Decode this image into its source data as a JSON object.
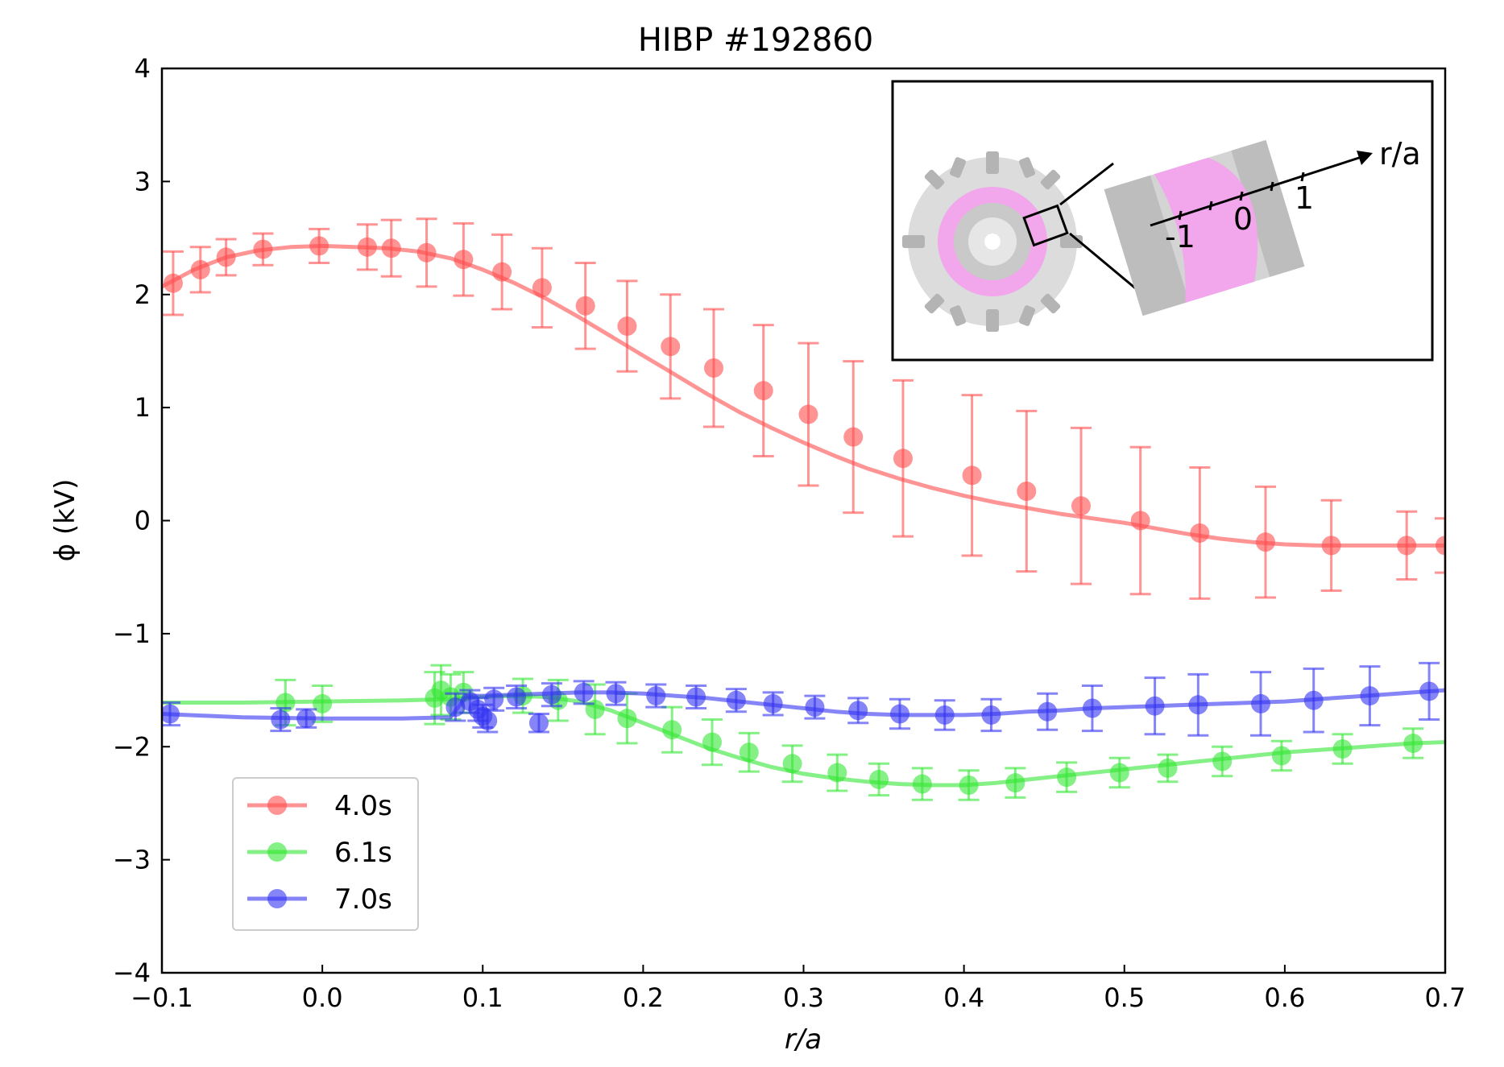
{
  "chart_data": {
    "type": "line",
    "title": "HIBP #192860",
    "xlabel": "r/a",
    "ylabel": "ϕ (kV)",
    "xlim": [
      -0.1,
      0.7
    ],
    "ylim": [
      -4,
      4
    ],
    "xticks": [
      -0.1,
      0.0,
      0.1,
      0.2,
      0.3,
      0.4,
      0.5,
      0.6,
      0.7
    ],
    "xtick_labels": [
      "−0.1",
      "0.0",
      "0.1",
      "0.2",
      "0.3",
      "0.4",
      "0.5",
      "0.6",
      "0.7"
    ],
    "yticks": [
      -4,
      -3,
      -2,
      -1,
      0,
      1,
      2,
      3,
      4
    ],
    "ytick_labels": [
      "−4",
      "−3",
      "−2",
      "−1",
      "0",
      "1",
      "2",
      "3",
      "4"
    ],
    "legend_position": "bottom-left",
    "series": [
      {
        "name": "4.0s",
        "color": "#ff4d4d",
        "curve_x": [
          -0.1,
          -0.08,
          -0.06,
          -0.04,
          -0.02,
          0.0,
          0.02,
          0.04,
          0.06,
          0.08,
          0.1,
          0.12,
          0.14,
          0.16,
          0.18,
          0.2,
          0.22,
          0.24,
          0.26,
          0.28,
          0.3,
          0.32,
          0.34,
          0.36,
          0.38,
          0.4,
          0.42,
          0.44,
          0.46,
          0.48,
          0.5,
          0.52,
          0.54,
          0.56,
          0.58,
          0.6,
          0.62,
          0.64,
          0.66,
          0.68,
          0.7
        ],
        "curve_y": [
          2.07,
          2.22,
          2.33,
          2.39,
          2.42,
          2.43,
          2.42,
          2.41,
          2.38,
          2.32,
          2.22,
          2.1,
          1.96,
          1.8,
          1.63,
          1.46,
          1.29,
          1.12,
          0.96,
          0.82,
          0.69,
          0.57,
          0.46,
          0.37,
          0.29,
          0.22,
          0.16,
          0.11,
          0.06,
          0.02,
          -0.02,
          -0.07,
          -0.12,
          -0.16,
          -0.19,
          -0.21,
          -0.22,
          -0.22,
          -0.22,
          -0.22,
          -0.22
        ],
        "points": [
          {
            "x": -0.093,
            "y": 2.1,
            "err": 0.28
          },
          {
            "x": -0.076,
            "y": 2.22,
            "err": 0.2
          },
          {
            "x": -0.06,
            "y": 2.33,
            "err": 0.16
          },
          {
            "x": -0.037,
            "y": 2.4,
            "err": 0.14
          },
          {
            "x": -0.002,
            "y": 2.43,
            "err": 0.15
          },
          {
            "x": 0.028,
            "y": 2.42,
            "err": 0.2
          },
          {
            "x": 0.043,
            "y": 2.41,
            "err": 0.25
          },
          {
            "x": 0.065,
            "y": 2.37,
            "err": 0.3
          },
          {
            "x": 0.088,
            "y": 2.31,
            "err": 0.32
          },
          {
            "x": 0.112,
            "y": 2.2,
            "err": 0.33
          },
          {
            "x": 0.137,
            "y": 2.06,
            "err": 0.35
          },
          {
            "x": 0.164,
            "y": 1.9,
            "err": 0.38
          },
          {
            "x": 0.19,
            "y": 1.72,
            "err": 0.4
          },
          {
            "x": 0.217,
            "y": 1.54,
            "err": 0.46
          },
          {
            "x": 0.244,
            "y": 1.35,
            "err": 0.52
          },
          {
            "x": 0.275,
            "y": 1.15,
            "err": 0.58
          },
          {
            "x": 0.303,
            "y": 0.94,
            "err": 0.63
          },
          {
            "x": 0.331,
            "y": 0.74,
            "err": 0.67
          },
          {
            "x": 0.362,
            "y": 0.55,
            "err": 0.69
          },
          {
            "x": 0.405,
            "y": 0.4,
            "err": 0.71
          },
          {
            "x": 0.439,
            "y": 0.26,
            "err": 0.71
          },
          {
            "x": 0.473,
            "y": 0.13,
            "err": 0.69
          },
          {
            "x": 0.51,
            "y": 0.0,
            "err": 0.65
          },
          {
            "x": 0.547,
            "y": -0.11,
            "err": 0.58
          },
          {
            "x": 0.588,
            "y": -0.19,
            "err": 0.49
          },
          {
            "x": 0.629,
            "y": -0.22,
            "err": 0.4
          },
          {
            "x": 0.676,
            "y": -0.22,
            "err": 0.3
          },
          {
            "x": 0.7,
            "y": -0.22,
            "err": 0.24
          }
        ]
      },
      {
        "name": "6.1s",
        "color": "#33e633",
        "curve_x": [
          -0.1,
          -0.05,
          0.0,
          0.05,
          0.08,
          0.1,
          0.12,
          0.14,
          0.16,
          0.18,
          0.2,
          0.22,
          0.24,
          0.26,
          0.28,
          0.3,
          0.32,
          0.34,
          0.36,
          0.38,
          0.4,
          0.42,
          0.44,
          0.46,
          0.48,
          0.5,
          0.52,
          0.54,
          0.56,
          0.58,
          0.6,
          0.62,
          0.64,
          0.66,
          0.68,
          0.7
        ],
        "curve_y": [
          -1.61,
          -1.61,
          -1.6,
          -1.59,
          -1.58,
          -1.56,
          -1.55,
          -1.56,
          -1.6,
          -1.68,
          -1.79,
          -1.9,
          -2.01,
          -2.1,
          -2.18,
          -2.24,
          -2.28,
          -2.31,
          -2.33,
          -2.34,
          -2.34,
          -2.32,
          -2.29,
          -2.26,
          -2.23,
          -2.2,
          -2.17,
          -2.14,
          -2.11,
          -2.08,
          -2.05,
          -2.03,
          -2.01,
          -1.99,
          -1.97,
          -1.96
        ],
        "points": [
          {
            "x": -0.023,
            "y": -1.61,
            "err": 0.2
          },
          {
            "x": 0.0,
            "y": -1.62,
            "err": 0.16
          },
          {
            "x": 0.07,
            "y": -1.57,
            "err": 0.23
          },
          {
            "x": 0.074,
            "y": -1.5,
            "err": 0.22
          },
          {
            "x": 0.08,
            "y": -1.56,
            "err": 0.2
          },
          {
            "x": 0.088,
            "y": -1.52,
            "err": 0.18
          },
          {
            "x": 0.125,
            "y": -1.55,
            "err": 0.15
          },
          {
            "x": 0.147,
            "y": -1.59,
            "err": 0.18
          },
          {
            "x": 0.17,
            "y": -1.67,
            "err": 0.22
          },
          {
            "x": 0.19,
            "y": -1.75,
            "err": 0.22
          },
          {
            "x": 0.218,
            "y": -1.85,
            "err": 0.2
          },
          {
            "x": 0.243,
            "y": -1.96,
            "err": 0.2
          },
          {
            "x": 0.266,
            "y": -2.05,
            "err": 0.17
          },
          {
            "x": 0.293,
            "y": -2.15,
            "err": 0.16
          },
          {
            "x": 0.321,
            "y": -2.23,
            "err": 0.16
          },
          {
            "x": 0.347,
            "y": -2.29,
            "err": 0.14
          },
          {
            "x": 0.374,
            "y": -2.33,
            "err": 0.14
          },
          {
            "x": 0.403,
            "y": -2.34,
            "err": 0.13
          },
          {
            "x": 0.432,
            "y": -2.32,
            "err": 0.13
          },
          {
            "x": 0.464,
            "y": -2.27,
            "err": 0.13
          },
          {
            "x": 0.497,
            "y": -2.23,
            "err": 0.13
          },
          {
            "x": 0.527,
            "y": -2.19,
            "err": 0.12
          },
          {
            "x": 0.561,
            "y": -2.13,
            "err": 0.13
          },
          {
            "x": 0.598,
            "y": -2.08,
            "err": 0.13
          },
          {
            "x": 0.636,
            "y": -2.02,
            "err": 0.13
          },
          {
            "x": 0.68,
            "y": -1.97,
            "err": 0.13
          }
        ]
      },
      {
        "name": "7.0s",
        "color": "#3333f2",
        "curve_x": [
          -0.1,
          -0.05,
          0.0,
          0.05,
          0.08,
          0.09,
          0.1,
          0.12,
          0.14,
          0.16,
          0.18,
          0.2,
          0.22,
          0.24,
          0.26,
          0.28,
          0.3,
          0.32,
          0.34,
          0.36,
          0.38,
          0.4,
          0.42,
          0.44,
          0.46,
          0.48,
          0.5,
          0.52,
          0.54,
          0.56,
          0.58,
          0.6,
          0.62,
          0.64,
          0.66,
          0.68,
          0.7
        ],
        "curve_y": [
          -1.71,
          -1.74,
          -1.75,
          -1.75,
          -1.74,
          -1.55,
          -1.55,
          -1.54,
          -1.53,
          -1.52,
          -1.52,
          -1.53,
          -1.55,
          -1.57,
          -1.6,
          -1.63,
          -1.66,
          -1.69,
          -1.71,
          -1.72,
          -1.72,
          -1.72,
          -1.71,
          -1.69,
          -1.68,
          -1.66,
          -1.65,
          -1.64,
          -1.63,
          -1.62,
          -1.61,
          -1.6,
          -1.58,
          -1.56,
          -1.54,
          -1.52,
          -1.5
        ],
        "points": [
          {
            "x": -0.095,
            "y": -1.71,
            "err": 0.1
          },
          {
            "x": -0.026,
            "y": -1.76,
            "err": 0.1
          },
          {
            "x": -0.01,
            "y": -1.75,
            "err": 0.08
          },
          {
            "x": 0.083,
            "y": -1.65,
            "err": 0.12
          },
          {
            "x": 0.092,
            "y": -1.6,
            "err": 0.1
          },
          {
            "x": 0.097,
            "y": -1.67,
            "err": 0.1
          },
          {
            "x": 0.1,
            "y": -1.73,
            "err": 0.1
          },
          {
            "x": 0.103,
            "y": -1.77,
            "err": 0.1
          },
          {
            "x": 0.107,
            "y": -1.58,
            "err": 0.1
          },
          {
            "x": 0.121,
            "y": -1.56,
            "err": 0.1
          },
          {
            "x": 0.135,
            "y": -1.79,
            "err": 0.08
          },
          {
            "x": 0.143,
            "y": -1.54,
            "err": 0.1
          },
          {
            "x": 0.163,
            "y": -1.52,
            "err": 0.1
          },
          {
            "x": 0.183,
            "y": -1.53,
            "err": 0.1
          },
          {
            "x": 0.208,
            "y": -1.55,
            "err": 0.1
          },
          {
            "x": 0.233,
            "y": -1.56,
            "err": 0.1
          },
          {
            "x": 0.258,
            "y": -1.59,
            "err": 0.1
          },
          {
            "x": 0.281,
            "y": -1.62,
            "err": 0.1
          },
          {
            "x": 0.307,
            "y": -1.65,
            "err": 0.1
          },
          {
            "x": 0.334,
            "y": -1.68,
            "err": 0.11
          },
          {
            "x": 0.36,
            "y": -1.71,
            "err": 0.13
          },
          {
            "x": 0.388,
            "y": -1.72,
            "err": 0.13
          },
          {
            "x": 0.417,
            "y": -1.72,
            "err": 0.14
          },
          {
            "x": 0.452,
            "y": -1.69,
            "err": 0.16
          },
          {
            "x": 0.48,
            "y": -1.66,
            "err": 0.2
          },
          {
            "x": 0.519,
            "y": -1.64,
            "err": 0.25
          },
          {
            "x": 0.546,
            "y": -1.63,
            "err": 0.27
          },
          {
            "x": 0.585,
            "y": -1.62,
            "err": 0.28
          },
          {
            "x": 0.618,
            "y": -1.59,
            "err": 0.28
          },
          {
            "x": 0.653,
            "y": -1.55,
            "err": 0.26
          },
          {
            "x": 0.69,
            "y": -1.51,
            "err": 0.25
          }
        ]
      }
    ],
    "inset": {
      "axis_label": "r/a",
      "tick_labels": [
        "-1",
        "0",
        "1"
      ]
    }
  }
}
